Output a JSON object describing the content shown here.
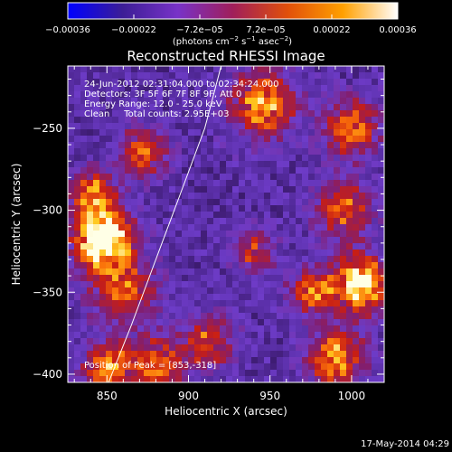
{
  "chart_data": {
    "type": "heatmap",
    "title": "Reconstructed RHESSI Image",
    "xlabel": "Heliocentric X (arcsec)",
    "ylabel": "Heliocentric Y (arcsec)",
    "xlim": [
      826,
      1020
    ],
    "ylim": [
      -405,
      -212
    ],
    "x_ticks": [
      850,
      900,
      950,
      1000
    ],
    "y_ticks": [
      -250,
      -300,
      -350,
      -400
    ],
    "x_tick_labels": [
      "850",
      "900",
      "950",
      "1000"
    ],
    "y_tick_labels": [
      "−250",
      "−300",
      "−350",
      "−400"
    ],
    "colorbar": {
      "range": [
        -0.00036,
        0.00036
      ],
      "tick_labels": [
        "−0.00036",
        "−0.00022",
        "−7.2e−05",
        "7.2e−05",
        "0.00022",
        "0.00036"
      ],
      "unit_prefix": "(photons cm",
      "unit_exp1": "−2",
      "unit_mid": " s",
      "unit_exp2": "−1",
      "unit_mid2": " asec",
      "unit_exp3": "−2",
      "unit_suffix": ")",
      "colors": [
        "#0000ff",
        "#3c1e96",
        "#7832c8",
        "#a01e5a",
        "#e1500a",
        "#ffa000",
        "#ffffff"
      ]
    },
    "annotations": [
      "24-Jun-2012 02:31:04.000 to 02:34:24.000",
      "Detectors: 3F 5F 6F 7F 8F 9F, Att 0",
      "Energy Range: 12.0 - 25.0 keV",
      "Clean     Total counts: 2.95E+03"
    ],
    "peak_label": "Position of Peak = [853,-318]",
    "limb_curve": [
      [
        851,
        -405
      ],
      [
        865,
        -370
      ],
      [
        880,
        -330
      ],
      [
        895,
        -290
      ],
      [
        910,
        -250
      ],
      [
        920,
        -212
      ]
    ],
    "sources": [
      {
        "x": 848,
        "y": -318,
        "amp": 1.0,
        "sigma": 12
      },
      {
        "x": 842,
        "y": -290,
        "amp": 0.55,
        "sigma": 10
      },
      {
        "x": 860,
        "y": -350,
        "amp": 0.45,
        "sigma": 14
      },
      {
        "x": 872,
        "y": -265,
        "amp": 0.5,
        "sigma": 10
      },
      {
        "x": 850,
        "y": -395,
        "amp": 0.55,
        "sigma": 10
      },
      {
        "x": 880,
        "y": -395,
        "amp": 0.5,
        "sigma": 12
      },
      {
        "x": 912,
        "y": -380,
        "amp": 0.45,
        "sigma": 11
      },
      {
        "x": 945,
        "y": -235,
        "amp": 0.6,
        "sigma": 14
      },
      {
        "x": 1000,
        "y": -250,
        "amp": 0.55,
        "sigma": 12
      },
      {
        "x": 995,
        "y": -300,
        "amp": 0.5,
        "sigma": 12
      },
      {
        "x": 1005,
        "y": -345,
        "amp": 0.8,
        "sigma": 12
      },
      {
        "x": 975,
        "y": -350,
        "amp": 0.55,
        "sigma": 9
      },
      {
        "x": 990,
        "y": -390,
        "amp": 0.6,
        "sigma": 12
      },
      {
        "x": 940,
        "y": -325,
        "amp": 0.4,
        "sigma": 9
      }
    ]
  },
  "footer": {
    "timestamp": "17-May-2014 04:29"
  }
}
